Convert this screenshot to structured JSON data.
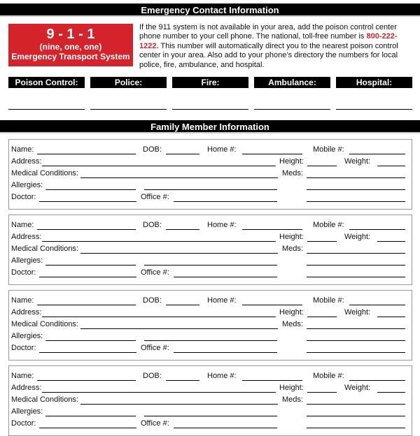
{
  "emergency": {
    "title": "Emergency Contact Information",
    "badge": {
      "number": "9 - 1 - 1",
      "spelled": "(nine, one, one)",
      "system": "Emergency Transport System"
    },
    "intro_before": "If the 911 system is not available in your area, add the poison control center phone number to your cell phone. The national, toll-free number is ",
    "phone": "800-222-1222.",
    "intro_after": " This number will automatically direct you to the nearest poison control center in your area. Also add to your phone’s directory the numbers for local police, fire, ambulance, and hospital.",
    "contacts": [
      "Poison Control:",
      "Police:",
      "Fire:",
      "Ambulance:",
      "Hospital:"
    ],
    "accent_color": "#d4232b"
  },
  "family": {
    "title": "Family Member Information",
    "labels": {
      "name": "Name:",
      "dob": "DOB:",
      "home": "Home #:",
      "mobile": "Mobile #:",
      "address": "Address:",
      "height": "Height:",
      "weight": "Weight:",
      "medical": "Medical Conditions:",
      "meds": "Meds:",
      "allergies": "Allergies:",
      "doctor": "Doctor:",
      "office": "Office #:"
    },
    "member_count": 4
  }
}
